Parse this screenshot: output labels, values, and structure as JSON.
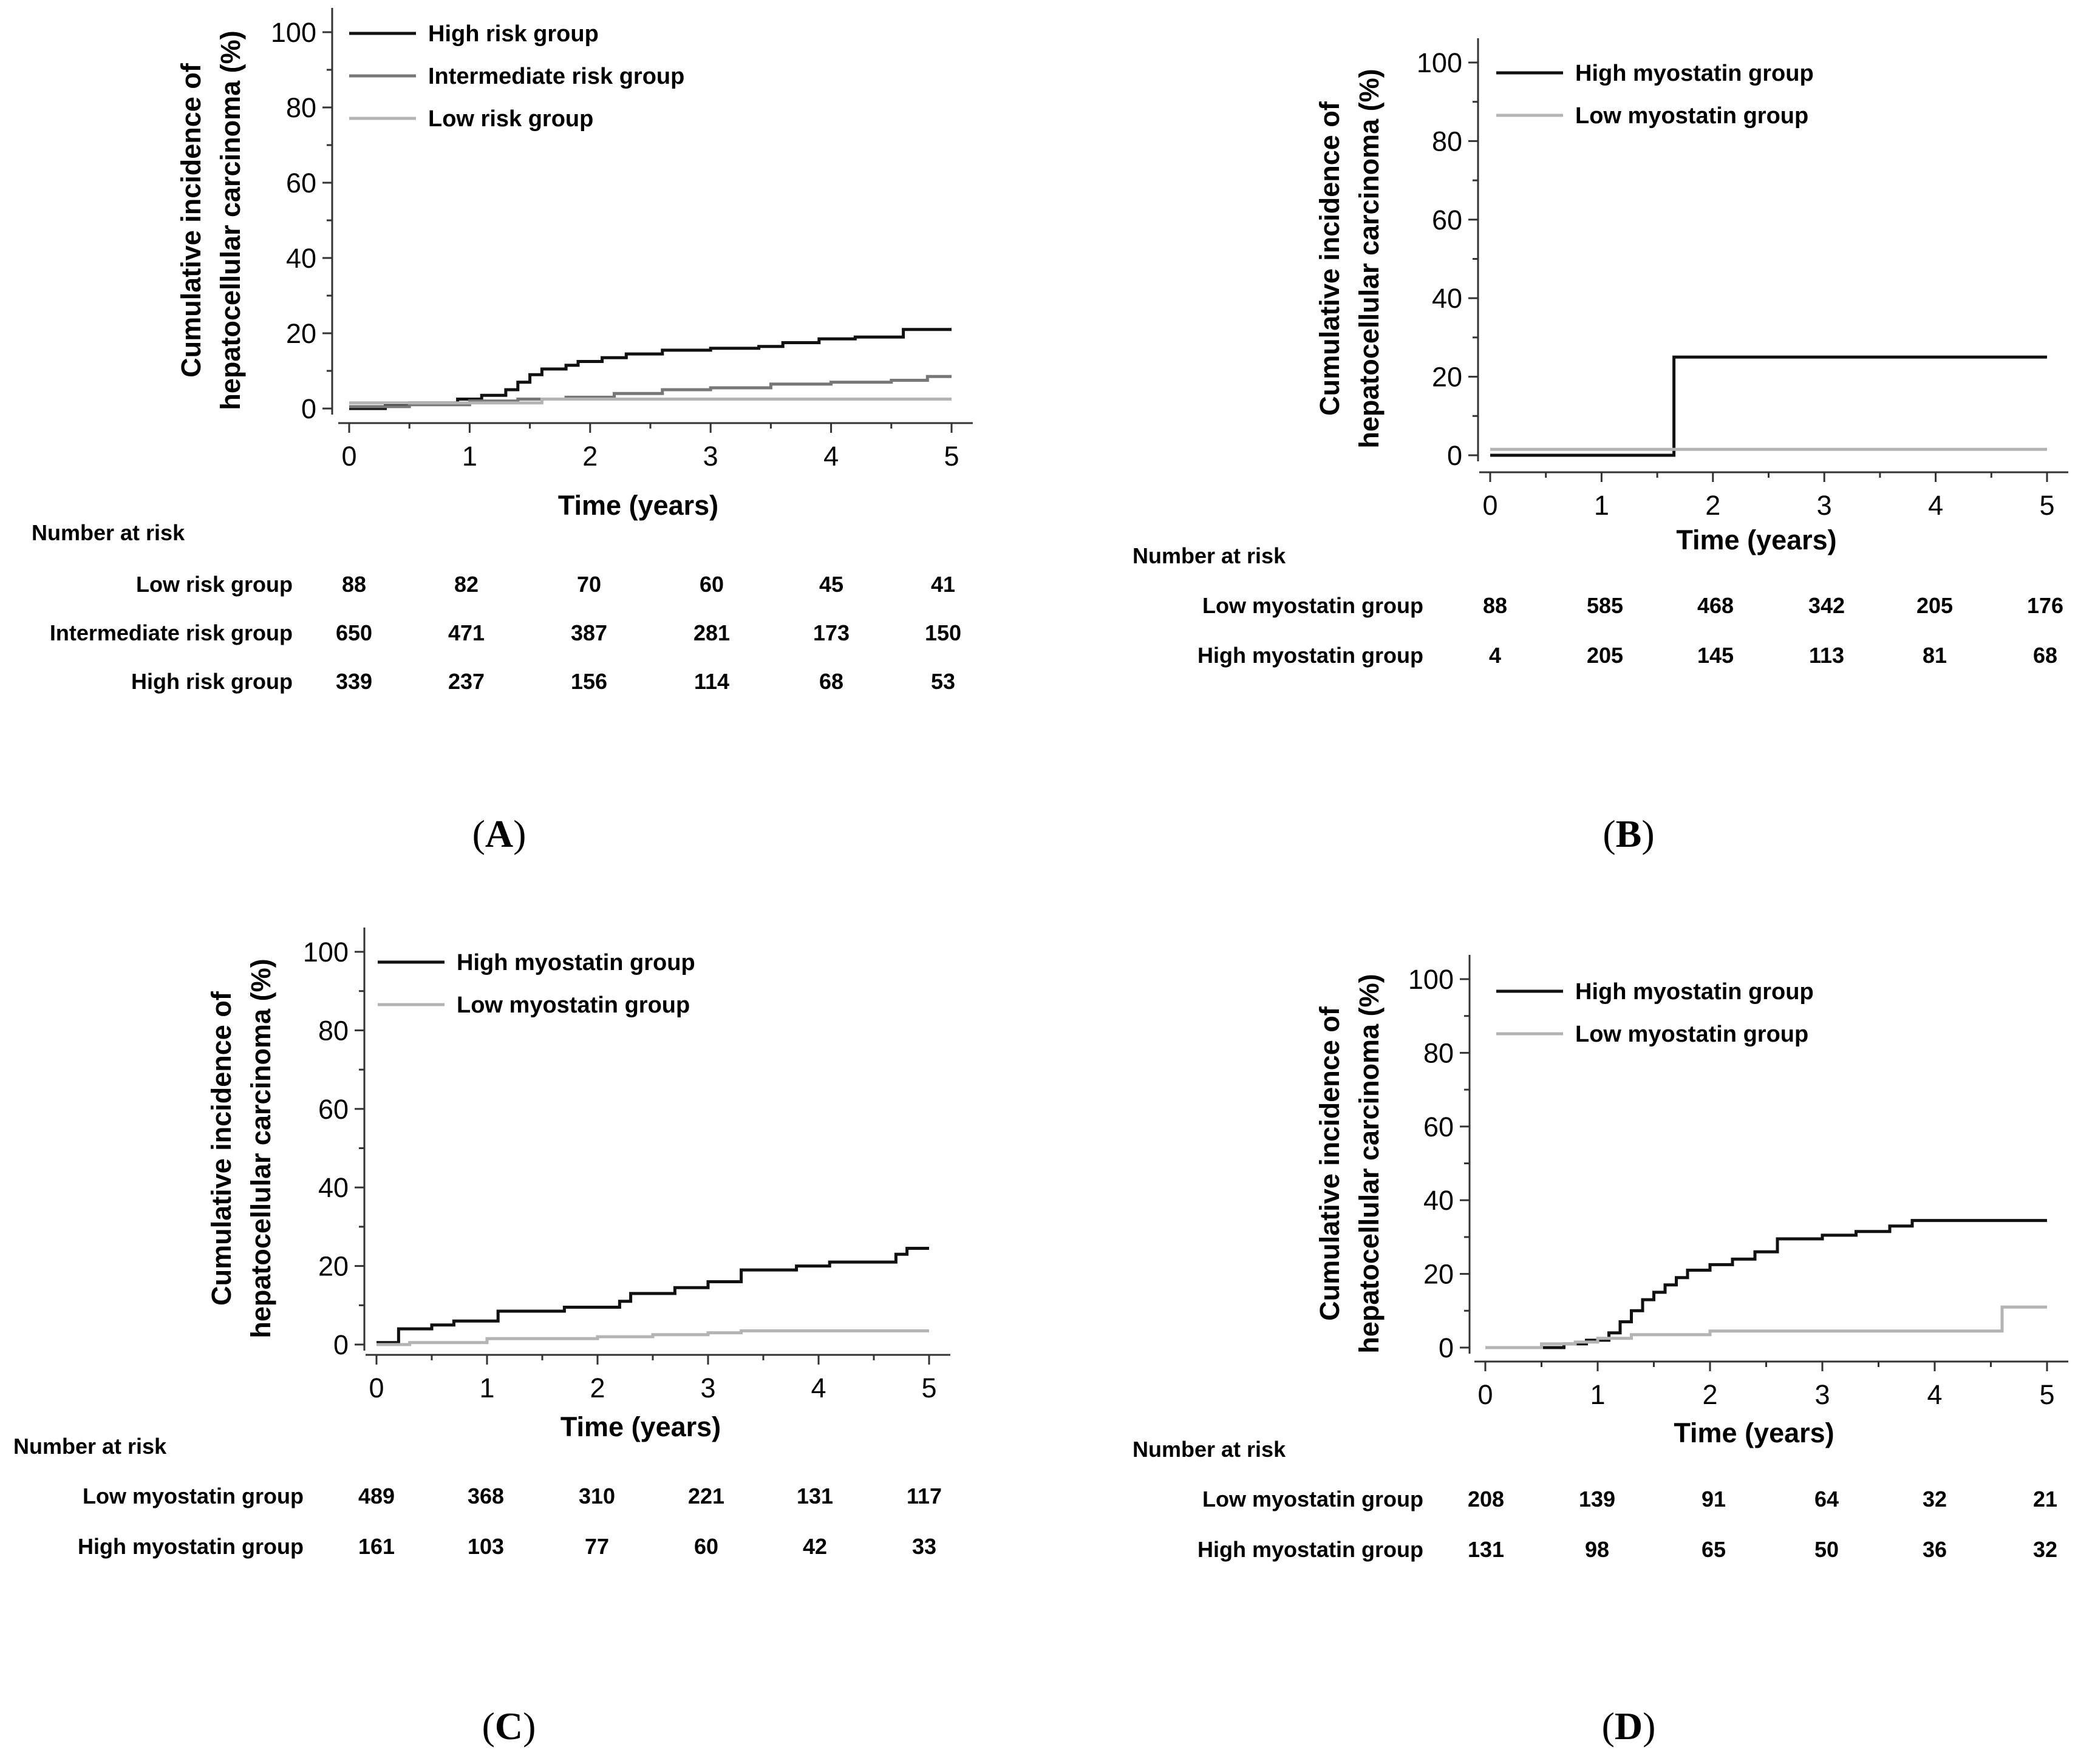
{
  "chart_data": [
    {
      "panel": "A",
      "type": "line",
      "xlabel": "Time (years)",
      "ylabel": [
        "Cumulative incidence of",
        "hepatocellular carcinoma (%)"
      ],
      "xlim": [
        0,
        5
      ],
      "ylim": [
        0,
        100
      ],
      "xticks": [
        "0",
        "1",
        "2",
        "3",
        "4",
        "5"
      ],
      "yticks": [
        "0",
        "20",
        "40",
        "60",
        "80",
        "100"
      ],
      "legend_position": "top-left",
      "series": [
        {
          "name": "High risk group",
          "color": "#111111",
          "x": [
            0,
            0.3,
            0.5,
            0.9,
            1.1,
            1.3,
            1.4,
            1.5,
            1.6,
            1.8,
            1.9,
            2.1,
            2.3,
            2.6,
            3.0,
            3.4,
            3.6,
            3.9,
            4.2,
            4.6,
            5.0
          ],
          "y": [
            0,
            1,
            1.5,
            2.5,
            3.5,
            5,
            7,
            9,
            10.5,
            11.5,
            12.5,
            13.5,
            14.5,
            15.5,
            16,
            16.5,
            17.5,
            18.5,
            19,
            21,
            21
          ]
        },
        {
          "name": "Intermediate risk group",
          "color": "#777777",
          "x": [
            0,
            0.5,
            1.0,
            1.4,
            1.8,
            2.2,
            2.6,
            3.0,
            3.5,
            4.0,
            4.5,
            4.8,
            5.0
          ],
          "y": [
            0.5,
            1,
            2,
            2.5,
            3,
            4,
            5,
            5.5,
            6.5,
            7,
            7.5,
            8.5,
            8.5
          ]
        },
        {
          "name": "Low risk group",
          "color": "#b4b4b4",
          "x": [
            0,
            1.5,
            1.6,
            5.0
          ],
          "y": [
            1.5,
            1.5,
            2.5,
            2.5
          ]
        }
      ],
      "risk_table": {
        "title": "Number at risk",
        "rows": [
          {
            "label": "Low risk group",
            "values": [
              "88",
              "82",
              "70",
              "60",
              "45",
              "41"
            ]
          },
          {
            "label": "Intermediate risk group",
            "values": [
              "650",
              "471",
              "387",
              "281",
              "173",
              "150"
            ]
          },
          {
            "label": "High risk group",
            "values": [
              "339",
              "237",
              "156",
              "114",
              "68",
              "53"
            ]
          }
        ]
      },
      "caption": "(A)"
    },
    {
      "panel": "B",
      "type": "line",
      "xlabel": "Time (years)",
      "ylabel": [
        "Cumulative incidence of",
        "hepatocellular carcinoma (%)"
      ],
      "xlim": [
        0,
        5
      ],
      "ylim": [
        0,
        100
      ],
      "xticks": [
        "0",
        "1",
        "2",
        "3",
        "4",
        "5"
      ],
      "yticks": [
        "0",
        "20",
        "40",
        "60",
        "80",
        "100"
      ],
      "legend_position": "top-left",
      "series": [
        {
          "name": "High myostatin group",
          "color": "#111111",
          "x": [
            0,
            1.65,
            1.65,
            5.0
          ],
          "y": [
            0,
            0,
            25,
            25
          ]
        },
        {
          "name": "Low myostatin group",
          "color": "#b4b4b4",
          "x": [
            0,
            5.0
          ],
          "y": [
            1.5,
            1.5
          ]
        }
      ],
      "risk_table": {
        "title": "Number at risk",
        "rows": [
          {
            "label": "Low myostatin group",
            "values": [
              "88",
              "585",
              "468",
              "342",
              "205",
              "176"
            ]
          },
          {
            "label": "High myostatin group",
            "values": [
              "4",
              "205",
              "145",
              "113",
              "81",
              "68"
            ]
          }
        ]
      },
      "caption": "(B)"
    },
    {
      "panel": "C",
      "type": "line",
      "xlabel": "Time (years)",
      "ylabel": [
        "Cumulative incidence of",
        "hepatocellular carcinoma (%)"
      ],
      "xlim": [
        0,
        5
      ],
      "ylim": [
        0,
        100
      ],
      "xticks": [
        "0",
        "1",
        "2",
        "3",
        "4",
        "5"
      ],
      "yticks": [
        "0",
        "20",
        "40",
        "60",
        "80",
        "100"
      ],
      "legend_position": "top-left",
      "series": [
        {
          "name": "High myostatin group",
          "color": "#111111",
          "x": [
            0,
            0.2,
            0.5,
            0.7,
            1.1,
            1.7,
            2.2,
            2.3,
            2.7,
            3.0,
            3.3,
            3.8,
            4.1,
            4.5,
            4.7,
            4.8,
            5.0
          ],
          "y": [
            0.5,
            4,
            5,
            6,
            8.5,
            9.5,
            11,
            13,
            14.5,
            16,
            19,
            20,
            21,
            21,
            23,
            24.5,
            24.5
          ]
        },
        {
          "name": "Low myostatin group",
          "color": "#b4b4b4",
          "x": [
            0,
            0.3,
            1.0,
            1.5,
            2.0,
            2.5,
            3.0,
            3.3,
            5.0
          ],
          "y": [
            0,
            0.5,
            1.5,
            1.5,
            2,
            2.5,
            3,
            3.5,
            3.5
          ]
        }
      ],
      "risk_table": {
        "title": "Number at risk",
        "rows": [
          {
            "label": "Low myostatin group",
            "values": [
              "489",
              "368",
              "310",
              "221",
              "131",
              "117"
            ]
          },
          {
            "label": "High myostatin group",
            "values": [
              "161",
              "103",
              "77",
              "60",
              "42",
              "33"
            ]
          }
        ]
      },
      "caption": "(C)"
    },
    {
      "panel": "D",
      "type": "line",
      "xlabel": "Time (years)",
      "ylabel": [
        "Cumulative incidence of",
        "hepatocellular carcinoma (%)"
      ],
      "xlim": [
        0,
        5
      ],
      "ylim": [
        0,
        100
      ],
      "xticks": [
        "0",
        "1",
        "2",
        "3",
        "4",
        "5"
      ],
      "yticks": [
        "0",
        "20",
        "40",
        "60",
        "80",
        "100"
      ],
      "legend_position": "top-left",
      "series": [
        {
          "name": "High myostatin group",
          "color": "#111111",
          "x": [
            0,
            0.7,
            0.9,
            1.1,
            1.2,
            1.3,
            1.4,
            1.5,
            1.6,
            1.7,
            1.8,
            2.0,
            2.2,
            2.4,
            2.6,
            3.0,
            3.3,
            3.6,
            3.8,
            5.0
          ],
          "y": [
            0,
            1,
            2,
            4,
            7,
            10,
            13,
            15,
            17,
            19,
            21,
            22.5,
            24,
            26,
            29.5,
            30.5,
            31.5,
            33,
            34.5,
            34.5
          ]
        },
        {
          "name": "Low myostatin group",
          "color": "#b4b4b4",
          "x": [
            0,
            0.5,
            0.8,
            1.0,
            1.3,
            2.0,
            4.6,
            4.6,
            5.0
          ],
          "y": [
            0,
            1,
            1.5,
            2.5,
            3.5,
            4.5,
            4.5,
            11,
            11
          ]
        }
      ],
      "risk_table": {
        "title": "Number at risk",
        "rows": [
          {
            "label": "Low myostatin group",
            "values": [
              "208",
              "139",
              "91",
              "64",
              "32",
              "21"
            ]
          },
          {
            "label": "High myostatin group",
            "values": [
              "131",
              "98",
              "65",
              "50",
              "36",
              "32"
            ]
          }
        ]
      },
      "caption": "(D)"
    }
  ]
}
